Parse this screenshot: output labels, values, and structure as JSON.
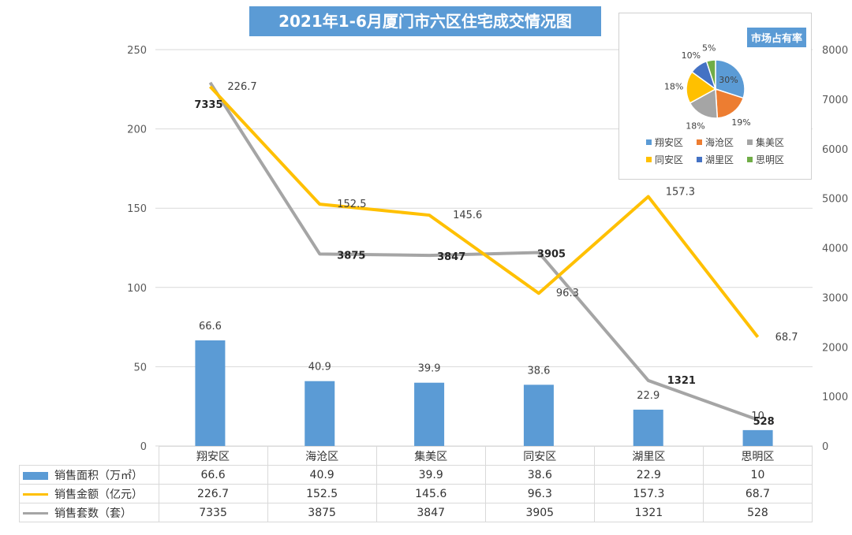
{
  "chart_data": {
    "type": "bar+line",
    "title": "2021年1-6月厦门市六区住宅成交情况图",
    "categories": [
      "翔安区",
      "海沧区",
      "集美区",
      "同安区",
      "湖里区",
      "思明区"
    ],
    "y_left": {
      "range": [
        0,
        250
      ],
      "ticks": [
        "0",
        "50",
        "100",
        "150",
        "200",
        "250"
      ]
    },
    "y_right": {
      "range": [
        0,
        8000
      ],
      "ticks": [
        "0",
        "1000",
        "2000",
        "3000",
        "4000",
        "5000",
        "6000",
        "7000",
        "8000"
      ]
    },
    "series": [
      {
        "name": "销售面积（万㎡）",
        "type": "bar",
        "axis": "left",
        "color": "#5B9BD5",
        "values": [
          66.6,
          40.9,
          39.9,
          38.6,
          22.9,
          10
        ],
        "labels": [
          "66.6",
          "40.9",
          "39.9",
          "38.6",
          "22.9",
          "10"
        ]
      },
      {
        "name": "销售金额（亿元）",
        "type": "line",
        "axis": "left",
        "color": "#FFC000",
        "values": [
          226.7,
          152.5,
          145.6,
          96.3,
          157.3,
          68.7
        ],
        "labels": [
          "226.7",
          "152.5",
          "145.6",
          "96.3",
          "157.3",
          "68.7"
        ]
      },
      {
        "name": "销售套数（套）",
        "type": "line",
        "axis": "right",
        "color": "#A5A5A5",
        "values": [
          7335,
          3875,
          3847,
          3905,
          1321,
          528
        ],
        "labels": [
          "7335",
          "3875",
          "3847",
          "3905",
          "1321",
          "528"
        ]
      }
    ],
    "inset_pie": {
      "title": "市场占有率",
      "slices": [
        {
          "name": "翔安区",
          "value": 30,
          "label": "30%",
          "color": "#5B9BD5"
        },
        {
          "name": "海沧区",
          "value": 19,
          "label": "19%",
          "color": "#ED7D31"
        },
        {
          "name": "集美区",
          "value": 18,
          "label": "18%",
          "color": "#A5A5A5"
        },
        {
          "name": "同安区",
          "value": 18,
          "label": "18%",
          "color": "#FFC000"
        },
        {
          "name": "湖里区",
          "value": 10,
          "label": "10%",
          "color": "#4472C4"
        },
        {
          "name": "思明区",
          "value": 5,
          "label": "5%",
          "color": "#70AD47"
        }
      ]
    }
  }
}
